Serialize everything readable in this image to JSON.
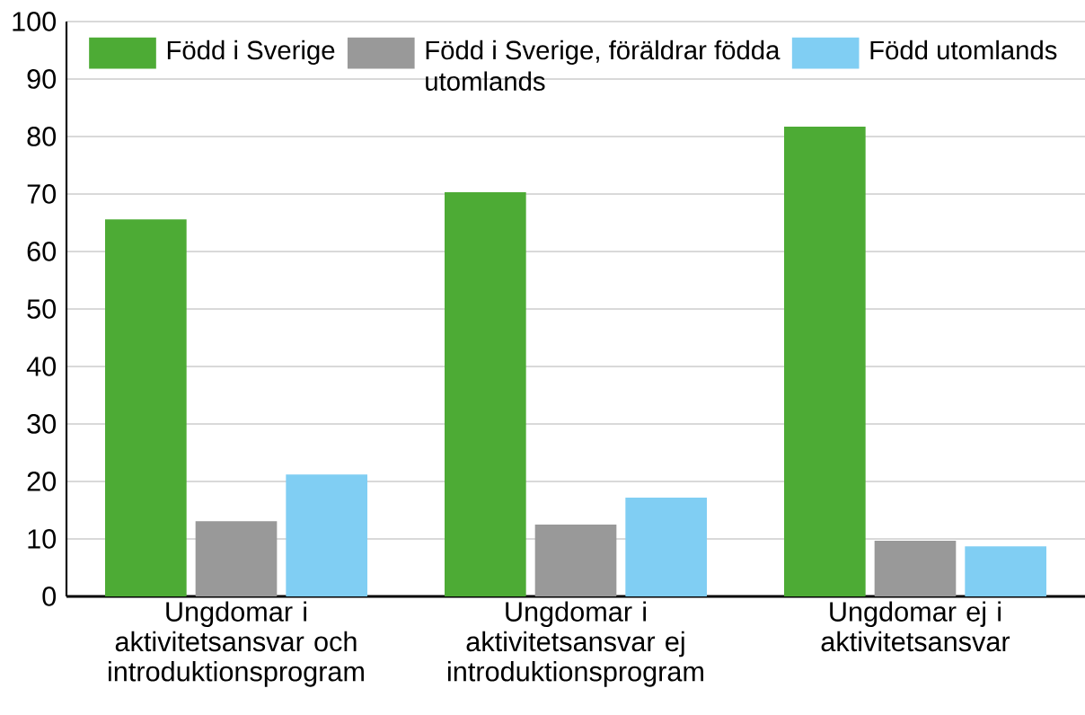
{
  "chart_data": {
    "type": "bar",
    "categories": [
      "Ungdomar i aktivitetsansvar och introduktionsprogram",
      "Ungdomar i aktivitetsansvar ej introduktionsprogram",
      "Ungdomar ej i aktivitetsansvar"
    ],
    "series": [
      {
        "name": "Född i Sverige",
        "color": "#4dab35",
        "values": [
          65.6,
          70.3,
          81.7
        ]
      },
      {
        "name": "Född i Sverige, föräldrar födda utomlands",
        "color": "#999999",
        "values": [
          13.1,
          12.5,
          9.7
        ]
      },
      {
        "name": "Född utomlands",
        "color": "#80cef3",
        "values": [
          21.2,
          17.2,
          8.7
        ]
      }
    ],
    "ylim": [
      0,
      100
    ],
    "yticks": [
      0,
      10,
      20,
      30,
      40,
      50,
      60,
      70,
      80,
      90,
      100
    ],
    "grid": "y",
    "legend": "top"
  }
}
